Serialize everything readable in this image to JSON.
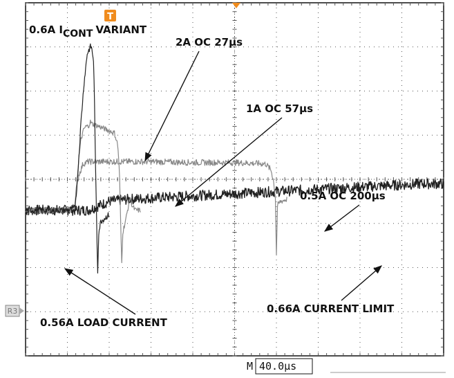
{
  "chart_data": {
    "type": "line",
    "title": "0.6A I CONT VARIANT",
    "title_main": "0.6A I",
    "title_sub": "CONT",
    "title_tail": "VARIANT",
    "xlabel": "",
    "ylabel": "",
    "x_unit": "µs",
    "time_per_div_label": "40.0µs",
    "time_per_div_prefix": "M",
    "trigger_marker": "T",
    "reference_marker": "R3",
    "x_divisions": 10,
    "y_divisions": 8,
    "xlim": [
      0,
      400
    ],
    "ylim": [
      0,
      8
    ],
    "grid": true,
    "series": [
      {
        "name": "2A OC 27µs",
        "points": [
          [
            0,
            3.3
          ],
          [
            40,
            3.3
          ],
          [
            47,
            3.35
          ],
          [
            49,
            3.8
          ],
          [
            51,
            4.5
          ],
          [
            53,
            5.3
          ],
          [
            56,
            6.2
          ],
          [
            59,
            6.85
          ],
          [
            62,
            7.0
          ],
          [
            63,
            7.0
          ],
          [
            65,
            6.7
          ],
          [
            66,
            5.7
          ],
          [
            67,
            4.2
          ],
          [
            68,
            3.0
          ],
          [
            69,
            1.9
          ],
          [
            70,
            2.8
          ],
          [
            72,
            3.05
          ],
          [
            80,
            3.2
          ]
        ]
      },
      {
        "name": "1A OC 57µs",
        "points": [
          [
            0,
            3.3
          ],
          [
            40,
            3.3
          ],
          [
            47,
            3.35
          ],
          [
            49,
            3.9
          ],
          [
            51,
            4.5
          ],
          [
            53,
            4.9
          ],
          [
            56,
            5.15
          ],
          [
            58,
            5.2
          ],
          [
            60,
            5.2
          ],
          [
            62,
            5.3
          ],
          [
            64,
            5.25
          ],
          [
            70,
            5.2
          ],
          [
            80,
            5.1
          ],
          [
            85,
            5.05
          ],
          [
            88,
            4.8
          ],
          [
            89,
            4.5
          ],
          [
            90,
            4.0
          ],
          [
            91,
            3.0
          ],
          [
            92,
            2.1
          ],
          [
            93,
            2.8
          ],
          [
            96,
            3.1
          ],
          [
            100,
            3.6
          ],
          [
            102,
            3.4
          ],
          [
            105,
            3.3
          ],
          [
            110,
            3.3
          ]
        ]
      },
      {
        "name": "0.5A OC 200µs",
        "points": [
          [
            0,
            3.3
          ],
          [
            40,
            3.3
          ],
          [
            47,
            3.4
          ],
          [
            49,
            3.8
          ],
          [
            51,
            4.1
          ],
          [
            55,
            4.35
          ],
          [
            60,
            4.4
          ],
          [
            80,
            4.4
          ],
          [
            120,
            4.4
          ],
          [
            160,
            4.38
          ],
          [
            200,
            4.38
          ],
          [
            230,
            4.35
          ],
          [
            235,
            4.2
          ],
          [
            237,
            4.0
          ],
          [
            239,
            3.6
          ],
          [
            240,
            2.3
          ],
          [
            241,
            3.4
          ],
          [
            244,
            3.5
          ],
          [
            250,
            3.55
          ]
        ]
      },
      {
        "name": "0.66A CURRENT LIMIT",
        "points": [
          [
            0,
            3.3
          ],
          [
            40,
            3.3
          ],
          [
            60,
            3.3
          ],
          [
            70,
            3.4
          ],
          [
            80,
            3.5
          ],
          [
            100,
            3.55
          ],
          [
            140,
            3.6
          ],
          [
            180,
            3.65
          ],
          [
            220,
            3.7
          ],
          [
            260,
            3.75
          ],
          [
            300,
            3.8
          ],
          [
            340,
            3.85
          ],
          [
            380,
            3.9
          ],
          [
            400,
            3.9
          ]
        ]
      }
    ],
    "annotations": [
      {
        "text": "2A OC 27µs",
        "target_series": "2A OC 27µs"
      },
      {
        "text": "1A OC 57µs",
        "target_series": "1A OC 57µs"
      },
      {
        "text": "0.5A OC 200µs",
        "target_series": "0.5A OC 200µs"
      },
      {
        "text": "0.56A LOAD CURRENT",
        "target_series": "0.56A LOAD CURRENT"
      },
      {
        "text": "0.66A CURRENT LIMIT",
        "target_series": "0.66A CURRENT LIMIT"
      }
    ],
    "colors": {
      "trigger": "#f08c1e",
      "trace_dark": "#222222",
      "trace_mid": "#555555",
      "trace_light": "#888888",
      "grid": "#555555"
    }
  }
}
